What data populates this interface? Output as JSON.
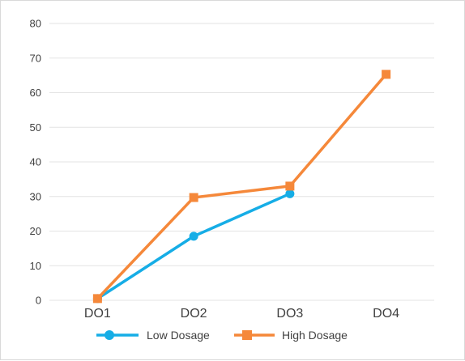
{
  "chart_data": {
    "type": "line",
    "categories": [
      "DO1",
      "DO2",
      "DO3",
      "DO4"
    ],
    "yticks": [
      "0",
      "10",
      "20",
      "30",
      "40",
      "50",
      "60",
      "70",
      "80"
    ],
    "ylim": [
      0,
      80
    ],
    "grid": true,
    "legend_position": "bottom",
    "series": [
      {
        "name": "Low Dosage",
        "values": [
          0.5,
          18.5,
          30.8,
          null
        ],
        "color": "#16ade6",
        "marker": "circle"
      },
      {
        "name": "High Dosage",
        "values": [
          0.5,
          29.7,
          33,
          65.3
        ],
        "color": "#f5883a",
        "marker": "square"
      }
    ]
  }
}
